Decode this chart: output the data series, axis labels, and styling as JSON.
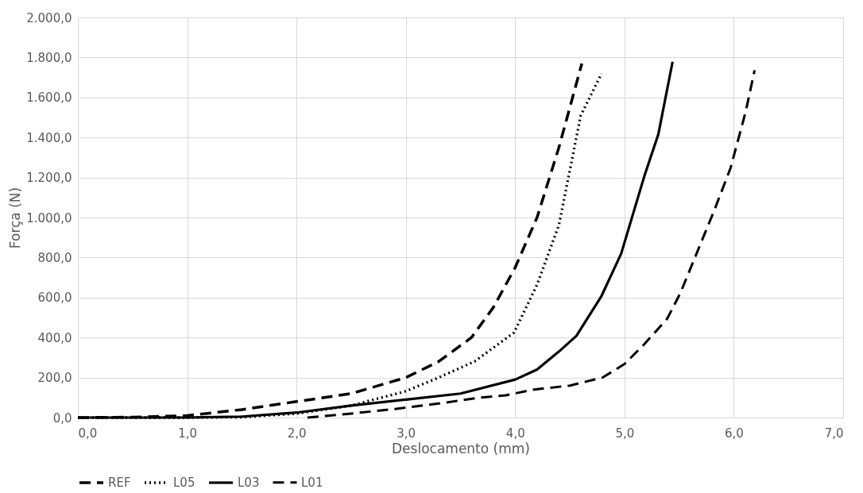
{
  "chart_data": {
    "type": "line",
    "xlabel": "Deslocamento (mm)",
    "ylabel": "Força (N)",
    "xlim": [
      0,
      7
    ],
    "ylim": [
      0,
      2000
    ],
    "xticks": [
      {
        "value": 0,
        "label": "0,0"
      },
      {
        "value": 1,
        "label": "1,0"
      },
      {
        "value": 2,
        "label": "2,0"
      },
      {
        "value": 3,
        "label": "3,0"
      },
      {
        "value": 4,
        "label": "4,0"
      },
      {
        "value": 5,
        "label": "5,0"
      },
      {
        "value": 6,
        "label": "6,0"
      },
      {
        "value": 7,
        "label": "7,0"
      }
    ],
    "yticks": [
      {
        "value": 0,
        "label": "0,0"
      },
      {
        "value": 200,
        "label": "200,0"
      },
      {
        "value": 400,
        "label": "400,0"
      },
      {
        "value": 600,
        "label": "600,0"
      },
      {
        "value": 800,
        "label": "800,0"
      },
      {
        "value": 1000,
        "label": "1.000,0"
      },
      {
        "value": 1200,
        "label": "1.200,0"
      },
      {
        "value": 1400,
        "label": "1.400,0"
      },
      {
        "value": 1600,
        "label": "1.600,0"
      },
      {
        "value": 1800,
        "label": "1.800,0"
      },
      {
        "value": 2000,
        "label": "2.000,0"
      }
    ],
    "grid": true,
    "legend": "bottom",
    "marker": "none",
    "series": [
      {
        "name": "REF",
        "color": "#000000",
        "line_style": "dashed",
        "x": [
          0,
          0.5,
          1.0,
          1.5,
          2.0,
          2.5,
          3.0,
          3.3,
          3.6,
          3.8,
          4.0,
          4.2,
          4.4,
          4.61
        ],
        "values": [
          0,
          2,
          10,
          40,
          80,
          120,
          200,
          280,
          400,
          550,
          750,
          1000,
          1350,
          1770
        ]
      },
      {
        "name": "L05",
        "color": "#000000",
        "line_style": "dotted",
        "x": [
          0,
          1.0,
          1.5,
          2.0,
          2.5,
          3.0,
          3.3,
          3.63,
          3.99,
          4.2,
          4.4,
          4.6,
          4.79
        ],
        "values": [
          0,
          0,
          2,
          20,
          60,
          132,
          200,
          281,
          425,
          664,
          962,
          1510,
          1719
        ]
      },
      {
        "name": "L03",
        "color": "#000000",
        "line_style": "solid",
        "x": [
          0,
          1.0,
          1.5,
          2.0,
          2.5,
          3.0,
          3.5,
          4.0,
          4.2,
          4.4,
          4.56,
          4.79,
          4.97,
          5.18,
          5.31,
          5.44
        ],
        "values": [
          0,
          0,
          5,
          25,
          60,
          90,
          120,
          190,
          240,
          330,
          408,
          608,
          820,
          1204,
          1417,
          1779
        ]
      },
      {
        "name": "L01",
        "color": "#000000",
        "line_style": "dashed",
        "x": [
          2.1,
          2.5,
          2.9,
          3.3,
          3.65,
          3.91,
          4.17,
          4.5,
          4.8,
          5.0,
          5.18,
          5.39,
          5.51,
          5.67,
          5.82,
          5.97,
          6.11,
          6.19
        ],
        "values": [
          0,
          20,
          43,
          70,
          98,
          111,
          140,
          160,
          200,
          268,
          366,
          494,
          621,
          834,
          1034,
          1247,
          1532,
          1736
        ]
      }
    ]
  }
}
